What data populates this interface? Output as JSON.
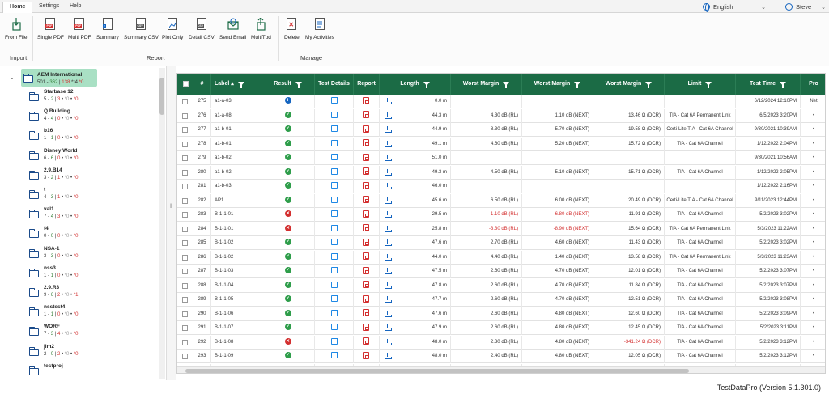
{
  "tabs": [
    {
      "label": "Home",
      "active": true
    },
    {
      "label": "Settings",
      "active": false
    },
    {
      "label": "Help",
      "active": false
    }
  ],
  "language": "English",
  "user": "Steve",
  "ribbon": {
    "buttons": [
      {
        "label": "From File",
        "icon": "import-icon"
      },
      {
        "label": "Single PDF",
        "icon": "pdf-icon"
      },
      {
        "label": "Multi PDF",
        "icon": "multi-pdf-icon"
      },
      {
        "label": "Summary",
        "icon": "summary-icon"
      },
      {
        "label": "Summary CSV",
        "icon": "csv-icon"
      },
      {
        "label": "Plot Only",
        "icon": "plot-icon"
      },
      {
        "label": "Detail CSV",
        "icon": "csv-icon"
      },
      {
        "label": "Send Email",
        "icon": "email-icon"
      },
      {
        "label": "MultiTpd",
        "icon": "multitpd-icon"
      },
      {
        "label": "Delete",
        "icon": "delete-icon"
      },
      {
        "label": "My Activities",
        "icon": "activities-icon"
      }
    ],
    "groups": {
      "import": "Import",
      "report": "Report",
      "manage": "Manage"
    }
  },
  "tree": {
    "root": {
      "name": "AEM International",
      "total": "501",
      "pass": "362",
      "fail": "138",
      "warn": "*4",
      "other": "*0"
    },
    "items": [
      {
        "name": "Starbase 12",
        "total": "5",
        "pass": "2",
        "fail": "3",
        "warn": "*0",
        "other": "*0"
      },
      {
        "name": "Q Building",
        "total": "4",
        "pass": "4",
        "fail": "0",
        "warn": "*0",
        "other": "*0"
      },
      {
        "name": "b16",
        "total": "1",
        "pass": "1",
        "fail": "0",
        "warn": "*0",
        "other": "*0"
      },
      {
        "name": "Disney World",
        "total": "6",
        "pass": "6",
        "fail": "0",
        "warn": "*0",
        "other": "*0"
      },
      {
        "name": "2.9.B14",
        "total": "3",
        "pass": "2",
        "fail": "1",
        "warn": "*0",
        "other": "*0"
      },
      {
        "name": "t",
        "total": "4",
        "pass": "3",
        "fail": "1",
        "warn": "*0",
        "other": "*0"
      },
      {
        "name": "val1",
        "total": "7",
        "pass": "4",
        "fail": "3",
        "warn": "*0",
        "other": "*0"
      },
      {
        "name": "f4",
        "total": "0",
        "pass": "0",
        "fail": "0",
        "warn": "*0",
        "other": "*0"
      },
      {
        "name": "NSA-1",
        "total": "3",
        "pass": "3",
        "fail": "0",
        "warn": "*0",
        "other": "*0"
      },
      {
        "name": "nss3",
        "total": "1",
        "pass": "1",
        "fail": "0",
        "warn": "*0",
        "other": "*0"
      },
      {
        "name": "2.9.R3",
        "total": "9",
        "pass": "6",
        "fail": "2",
        "warn": "*0",
        "other": "*1"
      },
      {
        "name": "nsstest4",
        "total": "1",
        "pass": "1",
        "fail": "0",
        "warn": "*0",
        "other": "*0"
      },
      {
        "name": "WORF",
        "total": "7",
        "pass": "3",
        "fail": "4",
        "warn": "*0",
        "other": "*0"
      },
      {
        "name": "jim2",
        "total": "2",
        "pass": "0",
        "fail": "2",
        "warn": "*0",
        "other": "*0"
      },
      {
        "name": "testproj",
        "total": "",
        "pass": "",
        "fail": "",
        "warn": "",
        "other": ""
      }
    ]
  },
  "grid": {
    "columns": [
      "#",
      "Label",
      "Result",
      "Test Details",
      "Report",
      "Length",
      "Worst Margin",
      "Worst Margin",
      "Worst Margin",
      "Limit",
      "Test Time",
      "Pro"
    ],
    "rows": [
      {
        "num": "275",
        "label": "a1-a-03",
        "result": "info",
        "length": "0.0 m",
        "wm1": "",
        "wm2": "",
        "wm3": "",
        "limit": "",
        "time": "6/12/2024 12:10PM",
        "pro": "Net",
        "red1": false,
        "red2": false,
        "red3": false
      },
      {
        "num": "276",
        "label": "a1-a-08",
        "result": "pass",
        "length": "44.3 m",
        "wm1": "4.30 dB (RL)",
        "wm2": "1.10 dB (NEXT)",
        "wm3": "13.46 Ω (DCR)",
        "limit": "TIA - Cat 6A Permanent Link",
        "time": "6/5/2023 3:20PM",
        "pro": "•",
        "red1": false,
        "red2": false,
        "red3": false
      },
      {
        "num": "277",
        "label": "a1-b-01",
        "result": "pass",
        "length": "44.9 m",
        "wm1": "8.30 dB (RL)",
        "wm2": "5.70 dB (NEXT)",
        "wm3": "19.58 Ω (DCR)",
        "limit": "Certi-Lite TIA - Cat 6A Channel",
        "time": "9/30/2021 10:39AM",
        "pro": "•",
        "red1": false,
        "red2": false,
        "red3": false
      },
      {
        "num": "278",
        "label": "a1-b-01",
        "result": "pass",
        "length": "49.1 m",
        "wm1": "4.60 dB (RL)",
        "wm2": "5.20 dB (NEXT)",
        "wm3": "15.72 Ω (DCR)",
        "limit": "TIA - Cat 6A Channel",
        "time": "1/12/2022 2:04PM",
        "pro": "•",
        "red1": false,
        "red2": false,
        "red3": false
      },
      {
        "num": "279",
        "label": "a1-b-02",
        "result": "pass",
        "length": "51.0 m",
        "wm1": "",
        "wm2": "",
        "wm3": "",
        "limit": "",
        "time": "9/30/2021 10:56AM",
        "pro": "•",
        "red1": false,
        "red2": false,
        "red3": false
      },
      {
        "num": "280",
        "label": "a1-b-02",
        "result": "pass",
        "length": "49.3 m",
        "wm1": "4.50 dB (RL)",
        "wm2": "5.10 dB (NEXT)",
        "wm3": "15.71 Ω (DCR)",
        "limit": "TIA - Cat 6A Channel",
        "time": "1/12/2022 2:05PM",
        "pro": "•",
        "red1": false,
        "red2": false,
        "red3": false
      },
      {
        "num": "281",
        "label": "a1-b-03",
        "result": "pass",
        "length": "46.0 m",
        "wm1": "",
        "wm2": "",
        "wm3": "",
        "limit": "",
        "time": "1/12/2022 2:16PM",
        "pro": "•",
        "red1": false,
        "red2": false,
        "red3": false
      },
      {
        "num": "282",
        "label": "AP1",
        "result": "pass",
        "length": "45.6 m",
        "wm1": "6.50 dB (RL)",
        "wm2": "6.00 dB (NEXT)",
        "wm3": "20.49 Ω (DCR)",
        "limit": "Certi-Lite TIA - Cat 6A Channel",
        "time": "9/11/2023 12:44PM",
        "pro": "•",
        "red1": false,
        "red2": false,
        "red3": false
      },
      {
        "num": "283",
        "label": "B-1-1-01",
        "result": "fail",
        "length": "29.5 m",
        "wm1": "-1.10 dB (RL)",
        "wm2": "-6.80 dB (NEXT)",
        "wm3": "11.91 Ω (DCR)",
        "limit": "TIA - Cat 6A Channel",
        "time": "5/2/2023 3:02PM",
        "pro": "•",
        "red1": true,
        "red2": true,
        "red3": false
      },
      {
        "num": "284",
        "label": "B-1-1-01",
        "result": "fail",
        "length": "25.8 m",
        "wm1": "-3.30 dB (RL)",
        "wm2": "-8.90 dB (NEXT)",
        "wm3": "15.64 Ω (DCR)",
        "limit": "TIA - Cat 6A Permanent Link",
        "time": "5/3/2023 11:22AM",
        "pro": "•",
        "red1": true,
        "red2": true,
        "red3": false
      },
      {
        "num": "285",
        "label": "B-1-1-02",
        "result": "pass",
        "length": "47.6 m",
        "wm1": "2.70 dB (RL)",
        "wm2": "4.60 dB (NEXT)",
        "wm3": "11.43 Ω (DCR)",
        "limit": "TIA - Cat 6A Channel",
        "time": "5/2/2023 3:02PM",
        "pro": "•",
        "red1": false,
        "red2": false,
        "red3": false
      },
      {
        "num": "286",
        "label": "B-1-1-02",
        "result": "pass",
        "length": "44.0 m",
        "wm1": "4.40 dB (RL)",
        "wm2": "1.40 dB (NEXT)",
        "wm3": "13.58 Ω (DCR)",
        "limit": "TIA - Cat 6A Permanent Link",
        "time": "5/3/2023 11:23AM",
        "pro": "•",
        "red1": false,
        "red2": false,
        "red3": false
      },
      {
        "num": "287",
        "label": "B-1-1-03",
        "result": "pass",
        "length": "47.5 m",
        "wm1": "2.60 dB (RL)",
        "wm2": "4.70 dB (NEXT)",
        "wm3": "12.01 Ω (DCR)",
        "limit": "TIA - Cat 6A Channel",
        "time": "5/2/2023 3:07PM",
        "pro": "•",
        "red1": false,
        "red2": false,
        "red3": false
      },
      {
        "num": "288",
        "label": "B-1-1-04",
        "result": "pass",
        "length": "47.8 m",
        "wm1": "2.60 dB (RL)",
        "wm2": "4.70 dB (NEXT)",
        "wm3": "11.84 Ω (DCR)",
        "limit": "TIA - Cat 6A Channel",
        "time": "5/2/2023 3:07PM",
        "pro": "•",
        "red1": false,
        "red2": false,
        "red3": false
      },
      {
        "num": "289",
        "label": "B-1-1-05",
        "result": "pass",
        "length": "47.7 m",
        "wm1": "2.60 dB (RL)",
        "wm2": "4.70 dB (NEXT)",
        "wm3": "12.51 Ω (DCR)",
        "limit": "TIA - Cat 6A Channel",
        "time": "5/2/2023 3:08PM",
        "pro": "•",
        "red1": false,
        "red2": false,
        "red3": false
      },
      {
        "num": "290",
        "label": "B-1-1-06",
        "result": "pass",
        "length": "47.6 m",
        "wm1": "2.60 dB (RL)",
        "wm2": "4.80 dB (NEXT)",
        "wm3": "12.60 Ω (DCR)",
        "limit": "TIA - Cat 6A Channel",
        "time": "5/2/2023 3:09PM",
        "pro": "•",
        "red1": false,
        "red2": false,
        "red3": false
      },
      {
        "num": "291",
        "label": "B-1-1-07",
        "result": "pass",
        "length": "47.9 m",
        "wm1": "2.60 dB (RL)",
        "wm2": "4.80 dB (NEXT)",
        "wm3": "12.45 Ω (DCR)",
        "limit": "TIA - Cat 6A Channel",
        "time": "5/2/2023 3:11PM",
        "pro": "•",
        "red1": false,
        "red2": false,
        "red3": false
      },
      {
        "num": "292",
        "label": "B-1-1-08",
        "result": "fail",
        "length": "48.0 m",
        "wm1": "2.30 dB (RL)",
        "wm2": "4.80 dB (NEXT)",
        "wm3": "-341.24 Ω (DCR)",
        "limit": "TIA - Cat 6A Channel",
        "time": "5/2/2023 3:12PM",
        "pro": "•",
        "red1": false,
        "red2": false,
        "red3": true
      },
      {
        "num": "293",
        "label": "B-1-1-09",
        "result": "pass",
        "length": "48.0 m",
        "wm1": "2.40 dB (RL)",
        "wm2": "4.80 dB (NEXT)",
        "wm3": "12.05 Ω (DCR)",
        "limit": "TIA - Cat 6A Channel",
        "time": "5/2/2023 3:12PM",
        "pro": "•",
        "red1": false,
        "red2": false,
        "red3": false
      },
      {
        "num": "294",
        "label": "B-1-1-10",
        "result": "fail",
        "length": "26.5 m",
        "wm1": "-3.30 dB (RL)",
        "wm2": "-9.00 dB (NEXT)",
        "wm3": "17.68 Ω (DCR)",
        "limit": "TIA - Cat 6A Permanent Link",
        "time": "5/3/2023 3:14PM",
        "pro": "•",
        "red1": true,
        "red2": true,
        "red3": false
      }
    ]
  },
  "footer": "TestDataPro (Version 5.1.301.0)"
}
